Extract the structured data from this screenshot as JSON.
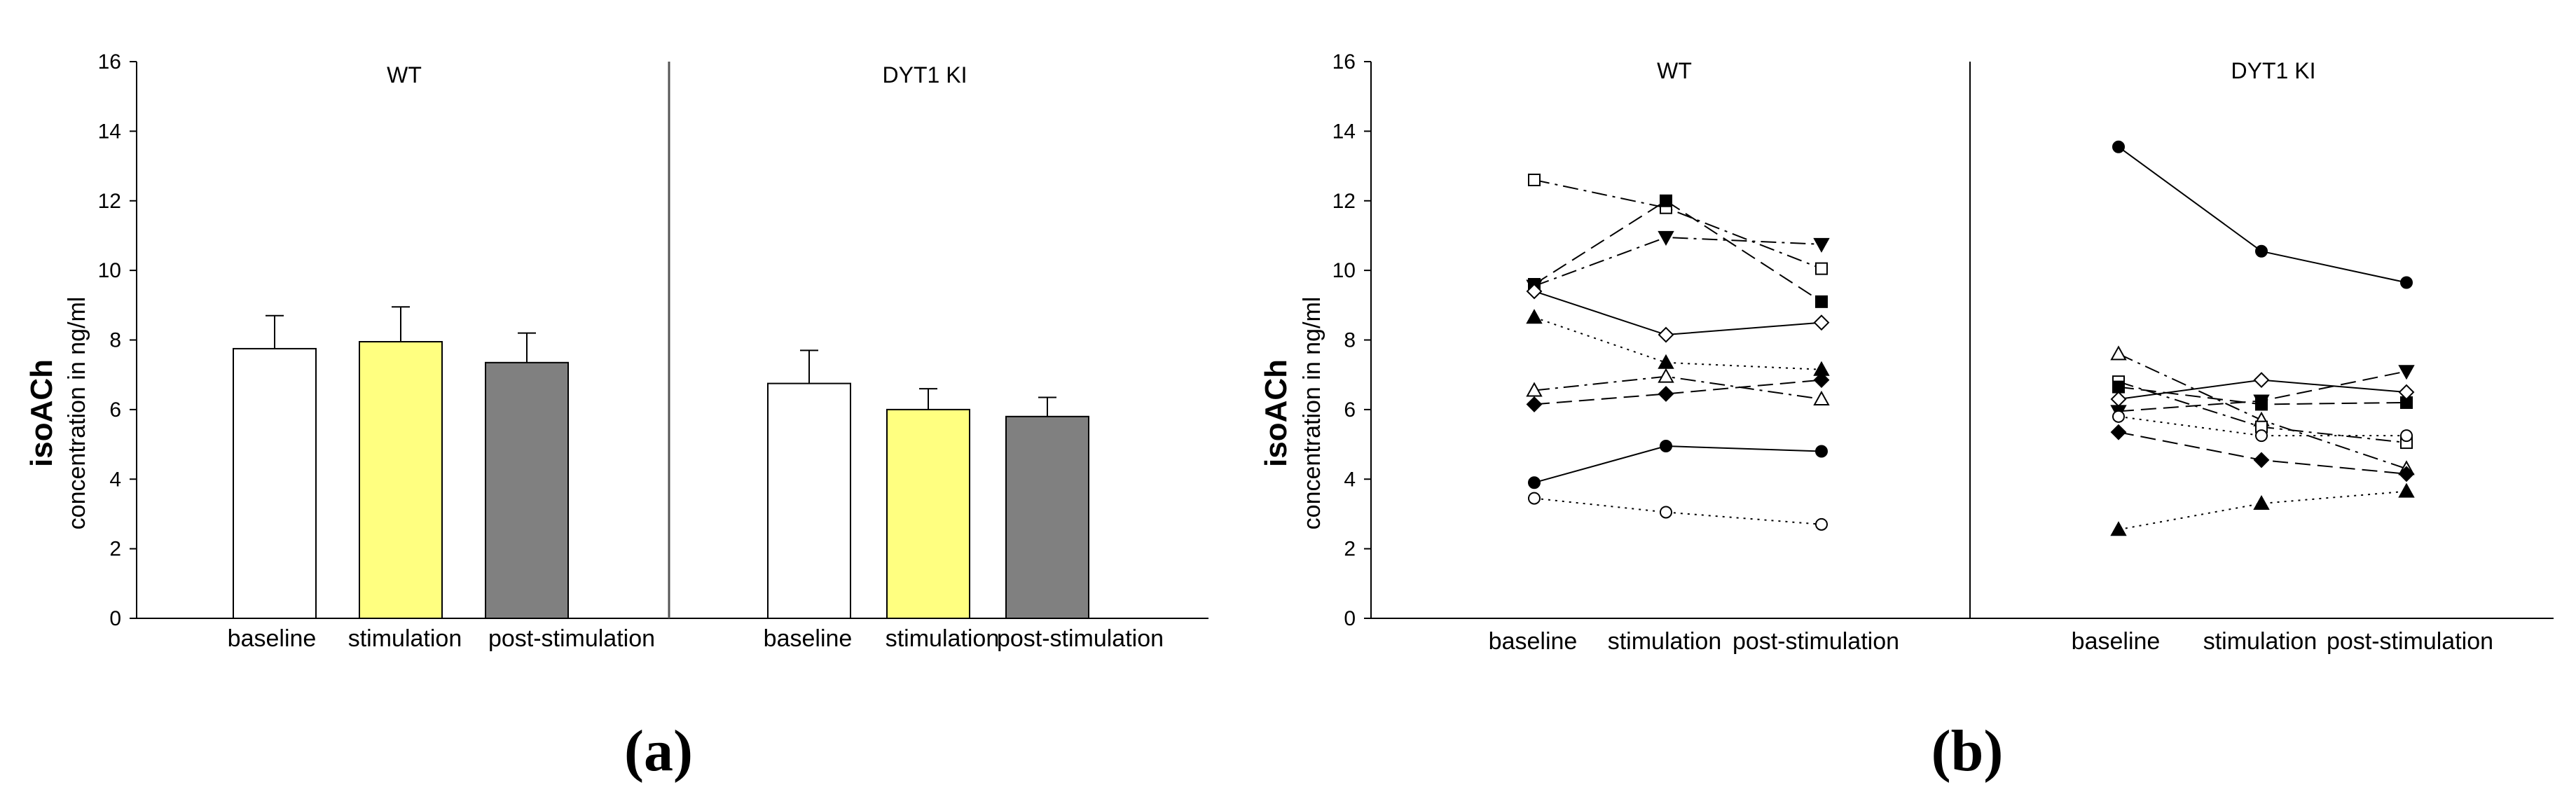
{
  "colors": {
    "baseline": "#ffffff",
    "stimulation": "#ffff80",
    "post_stimulation": "#808080",
    "stroke": "#000000"
  },
  "chart_data": [
    {
      "panel_label": "(a)",
      "type": "bar",
      "ytitle": "isoACh",
      "ylabel": "concentration in ng/ml",
      "ylim": [
        0,
        16
      ],
      "yticks": [
        "0",
        "2",
        "4",
        "6",
        "8",
        "10",
        "12",
        "14",
        "16"
      ],
      "groups": [
        {
          "name": "WT",
          "categories": [
            "baseline",
            "stimulation",
            "post-stimulation"
          ],
          "values": [
            7.75,
            7.95,
            7.35
          ],
          "errors": [
            0.95,
            1.0,
            0.85
          ]
        },
        {
          "name": "DYT1 KI",
          "categories": [
            "baseline",
            "stimulation",
            "post-stimulation"
          ],
          "values": [
            6.75,
            6.0,
            5.8
          ],
          "errors": [
            0.95,
            0.6,
            0.55
          ]
        }
      ]
    },
    {
      "panel_label": "(b)",
      "type": "line",
      "ytitle": "isoACh",
      "ylabel": "concentration in ng/ml",
      "ylim": [
        0,
        16
      ],
      "yticks": [
        "0",
        "2",
        "4",
        "6",
        "8",
        "10",
        "12",
        "14",
        "16"
      ],
      "groups": [
        {
          "name": "WT",
          "categories": [
            "baseline",
            "stimulation",
            "post-stimulation"
          ],
          "series": [
            {
              "marker": "open-square",
              "dash": "dashdot",
              "values": [
                12.6,
                11.8,
                10.05
              ]
            },
            {
              "marker": "filled-square",
              "dash": "longdash",
              "values": [
                9.6,
                12.0,
                9.1
              ]
            },
            {
              "marker": "filled-triangle-down",
              "dash": "dashdot",
              "values": [
                9.55,
                10.95,
                10.75
              ]
            },
            {
              "marker": "open-diamond",
              "dash": "solid",
              "values": [
                9.4,
                8.15,
                8.5
              ]
            },
            {
              "marker": "filled-triangle-up",
              "dash": "dotted",
              "values": [
                8.65,
                7.35,
                7.15
              ]
            },
            {
              "marker": "open-triangle-up",
              "dash": "dashdot",
              "values": [
                6.55,
                6.95,
                6.3
              ]
            },
            {
              "marker": "filled-diamond",
              "dash": "longdash",
              "values": [
                6.15,
                6.45,
                6.85
              ]
            },
            {
              "marker": "filled-circle",
              "dash": "solid",
              "values": [
                3.9,
                4.95,
                4.8
              ]
            },
            {
              "marker": "open-circle",
              "dash": "dotted",
              "values": [
                3.45,
                3.05,
                2.7
              ]
            }
          ]
        },
        {
          "name": "DYT1 KI",
          "categories": [
            "baseline",
            "stimulation",
            "post-stimulation"
          ],
          "series": [
            {
              "marker": "filled-circle",
              "dash": "solid",
              "values": [
                13.55,
                10.55,
                9.65
              ]
            },
            {
              "marker": "open-triangle-up",
              "dash": "dashdot",
              "values": [
                7.6,
                5.7,
                4.3
              ]
            },
            {
              "marker": "open-square",
              "dash": "dashdot",
              "values": [
                6.8,
                5.5,
                5.05
              ]
            },
            {
              "marker": "filled-square",
              "dash": "longdash",
              "values": [
                6.65,
                6.15,
                6.2
              ]
            },
            {
              "marker": "open-diamond",
              "dash": "solid",
              "values": [
                6.3,
                6.85,
                6.5
              ]
            },
            {
              "marker": "filled-triangle-down",
              "dash": "longdash",
              "values": [
                5.95,
                6.25,
                7.1
              ]
            },
            {
              "marker": "open-circle",
              "dash": "dotted",
              "values": [
                5.8,
                5.25,
                5.25
              ]
            },
            {
              "marker": "filled-diamond",
              "dash": "longdash",
              "values": [
                5.35,
                4.55,
                4.15
              ]
            },
            {
              "marker": "filled-triangle-up",
              "dash": "dotted",
              "values": [
                2.55,
                3.3,
                3.65
              ]
            }
          ]
        }
      ]
    }
  ]
}
